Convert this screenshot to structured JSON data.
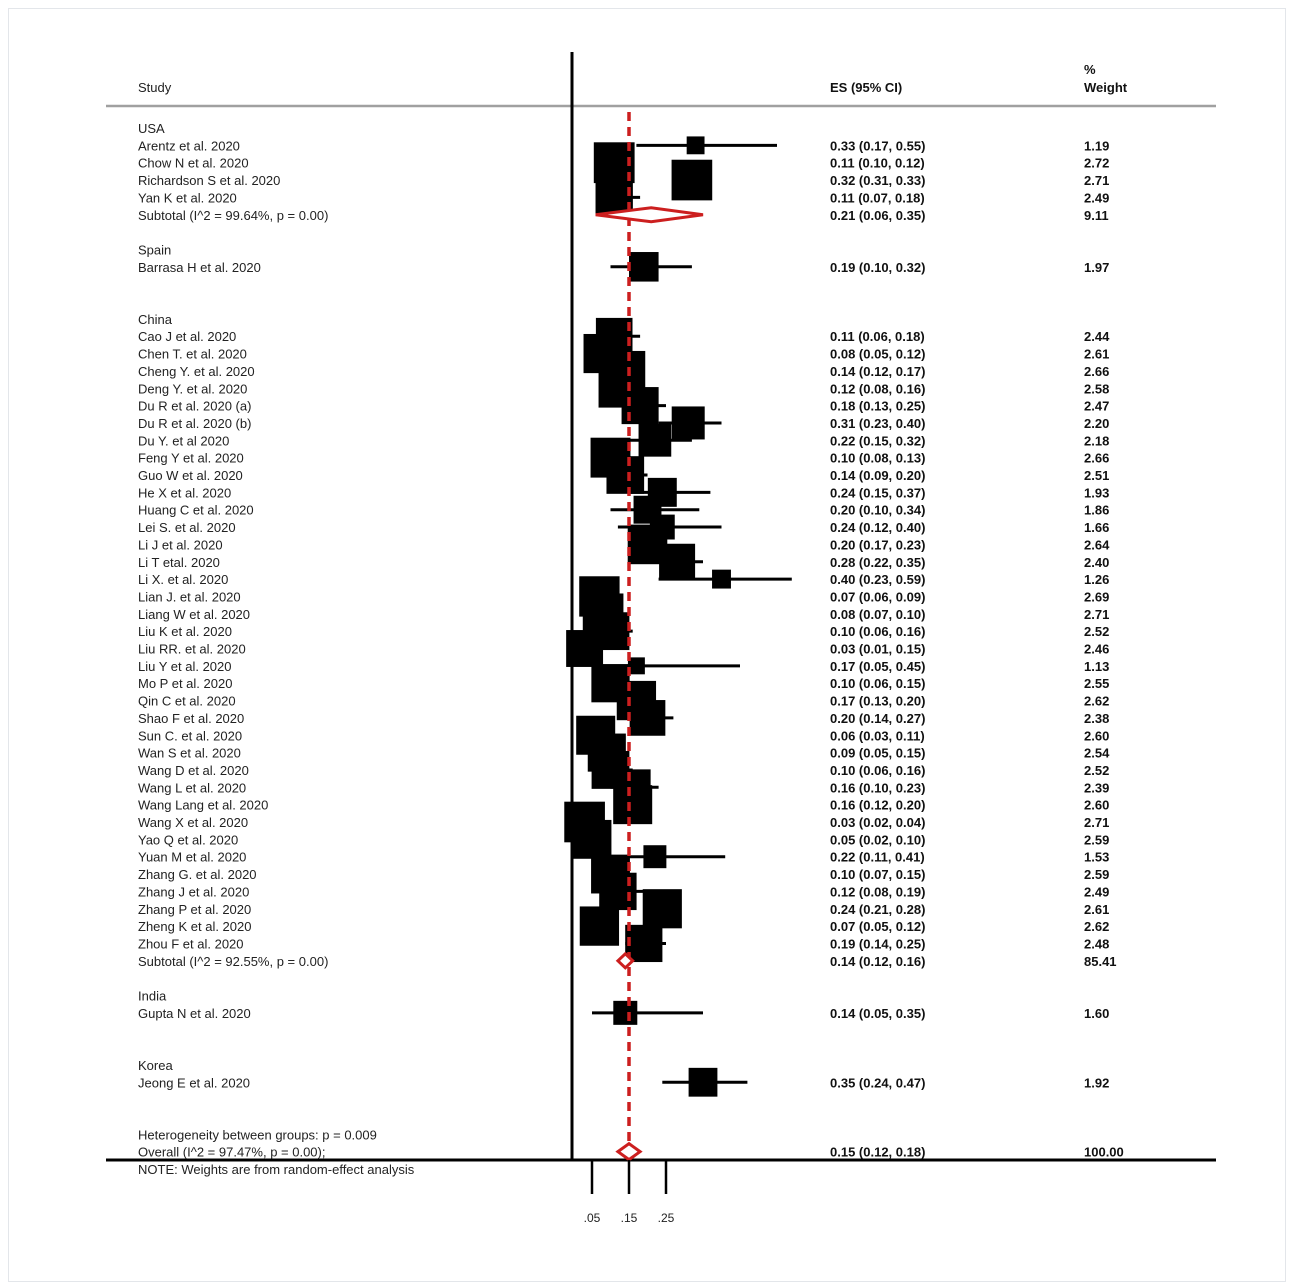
{
  "chart_data": {
    "type": "forest",
    "headers": {
      "study": "Study",
      "es": "ES (95% CI)",
      "weight_line1": "%",
      "weight_line2": "Weight"
    },
    "x_ticks": [
      {
        "value": 0.05,
        "label": ".05"
      },
      {
        "value": 0.15,
        "label": ".15"
      },
      {
        "value": 0.25,
        "label": ".25"
      }
    ],
    "overall_line_value": 0.15,
    "groups": [
      {
        "name": "USA",
        "studies": [
          {
            "study": "Arentz et al. 2020",
            "es": 0.33,
            "lo": 0.17,
            "hi": 0.55,
            "label": "0.33 (0.17, 0.55)",
            "weight": "1.19"
          },
          {
            "study": "Chow N et al. 2020",
            "es": 0.11,
            "lo": 0.1,
            "hi": 0.12,
            "label": "0.11 (0.10, 0.12)",
            "weight": "2.72"
          },
          {
            "study": "Richardson S et al. 2020",
            "es": 0.32,
            "lo": 0.31,
            "hi": 0.33,
            "label": "0.32 (0.31, 0.33)",
            "weight": "2.71"
          },
          {
            "study": "Yan K et al. 2020",
            "es": 0.11,
            "lo": 0.07,
            "hi": 0.18,
            "label": "0.11 (0.07, 0.18)",
            "weight": "2.49"
          }
        ],
        "subtotal": {
          "text": "Subtotal  (I^2 = 99.64%, p = 0.00)",
          "es": 0.21,
          "lo": 0.06,
          "hi": 0.35,
          "label": "0.21 (0.06, 0.35)",
          "weight": "9.11"
        }
      },
      {
        "name": "Spain",
        "studies": [
          {
            "study": "Barrasa H et al. 2020",
            "es": 0.19,
            "lo": 0.1,
            "hi": 0.32,
            "label": "0.19 (0.10, 0.32)",
            "weight": "1.97"
          }
        ]
      },
      {
        "name": "China",
        "studies": [
          {
            "study": "Cao J et al. 2020",
            "es": 0.11,
            "lo": 0.06,
            "hi": 0.18,
            "label": "0.11 (0.06, 0.18)",
            "weight": "2.44"
          },
          {
            "study": "Chen T. et al. 2020",
            "es": 0.08,
            "lo": 0.05,
            "hi": 0.12,
            "label": "0.08 (0.05, 0.12)",
            "weight": "2.61"
          },
          {
            "study": "Cheng Y. et al. 2020",
            "es": 0.14,
            "lo": 0.12,
            "hi": 0.17,
            "label": "0.14 (0.12, 0.17)",
            "weight": "2.66"
          },
          {
            "study": "Deng Y. et al. 2020",
            "es": 0.12,
            "lo": 0.08,
            "hi": 0.16,
            "label": "0.12 (0.08, 0.16)",
            "weight": "2.58"
          },
          {
            "study": "Du R et al. 2020 (a)",
            "es": 0.18,
            "lo": 0.13,
            "hi": 0.25,
            "label": "0.18 (0.13, 0.25)",
            "weight": "2.47"
          },
          {
            "study": "Du R et al. 2020 (b)",
            "es": 0.31,
            "lo": 0.23,
            "hi": 0.4,
            "label": "0.31 (0.23, 0.40)",
            "weight": "2.20"
          },
          {
            "study": "Du Y. et al 2020",
            "es": 0.22,
            "lo": 0.15,
            "hi": 0.32,
            "label": "0.22 (0.15, 0.32)",
            "weight": "2.18"
          },
          {
            "study": "Feng Y et al. 2020",
            "es": 0.1,
            "lo": 0.08,
            "hi": 0.13,
            "label": "0.10 (0.08, 0.13)",
            "weight": "2.66"
          },
          {
            "study": "Guo W et al. 2020",
            "es": 0.14,
            "lo": 0.09,
            "hi": 0.2,
            "label": "0.14 (0.09, 0.20)",
            "weight": "2.51"
          },
          {
            "study": "He X et al. 2020",
            "es": 0.24,
            "lo": 0.15,
            "hi": 0.37,
            "label": "0.24 (0.15, 0.37)",
            "weight": "1.93"
          },
          {
            "study": "Huang C et al. 2020",
            "es": 0.2,
            "lo": 0.1,
            "hi": 0.34,
            "label": "0.20 (0.10, 0.34)",
            "weight": "1.86"
          },
          {
            "study": "Lei S. et al. 2020",
            "es": 0.24,
            "lo": 0.12,
            "hi": 0.4,
            "label": "0.24 (0.12, 0.40)",
            "weight": "1.66"
          },
          {
            "study": "Li J et al. 2020",
            "es": 0.2,
            "lo": 0.17,
            "hi": 0.23,
            "label": "0.20 (0.17, 0.23)",
            "weight": "2.64"
          },
          {
            "study": "Li T etal. 2020",
            "es": 0.28,
            "lo": 0.22,
            "hi": 0.35,
            "label": "0.28 (0.22, 0.35)",
            "weight": "2.40"
          },
          {
            "study": "Li X. et al. 2020",
            "es": 0.4,
            "lo": 0.23,
            "hi": 0.59,
            "label": "0.40 (0.23, 0.59)",
            "weight": "1.26"
          },
          {
            "study": "Lian J. et al. 2020",
            "es": 0.07,
            "lo": 0.06,
            "hi": 0.09,
            "label": "0.07 (0.06, 0.09)",
            "weight": "2.69"
          },
          {
            "study": "Liang W et al. 2020",
            "es": 0.08,
            "lo": 0.07,
            "hi": 0.1,
            "label": "0.08 (0.07, 0.10)",
            "weight": "2.71"
          },
          {
            "study": "Liu K et al. 2020",
            "es": 0.1,
            "lo": 0.06,
            "hi": 0.16,
            "label": "0.10 (0.06, 0.16)",
            "weight": "2.52"
          },
          {
            "study": "Liu RR. et al. 2020",
            "es": 0.03,
            "lo": 0.01,
            "hi": 0.15,
            "label": "0.03 (0.01, 0.15)",
            "weight": "2.46"
          },
          {
            "study": "Liu Y et al. 2020",
            "es": 0.17,
            "lo": 0.05,
            "hi": 0.45,
            "label": "0.17 (0.05, 0.45)",
            "weight": "1.13"
          },
          {
            "study": "Mo P et al. 2020",
            "es": 0.1,
            "lo": 0.06,
            "hi": 0.15,
            "label": "0.10 (0.06, 0.15)",
            "weight": "2.55"
          },
          {
            "study": "Qin C et al. 2020",
            "es": 0.17,
            "lo": 0.13,
            "hi": 0.2,
            "label": "0.17 (0.13, 0.20)",
            "weight": "2.62"
          },
          {
            "study": "Shao F et al. 2020",
            "es": 0.2,
            "lo": 0.14,
            "hi": 0.27,
            "label": "0.20 (0.14, 0.27)",
            "weight": "2.38"
          },
          {
            "study": "Sun C. et al. 2020",
            "es": 0.06,
            "lo": 0.03,
            "hi": 0.11,
            "label": "0.06 (0.03, 0.11)",
            "weight": "2.60"
          },
          {
            "study": "Wan S et al. 2020",
            "es": 0.09,
            "lo": 0.05,
            "hi": 0.15,
            "label": "0.09 (0.05, 0.15)",
            "weight": "2.54"
          },
          {
            "study": "Wang D et al. 2020",
            "es": 0.1,
            "lo": 0.06,
            "hi": 0.16,
            "label": "0.10 (0.06, 0.16)",
            "weight": "2.52"
          },
          {
            "study": "Wang L et al. 2020",
            "es": 0.16,
            "lo": 0.1,
            "hi": 0.23,
            "label": "0.16 (0.10, 0.23)",
            "weight": "2.39"
          },
          {
            "study": "Wang Lang et al. 2020",
            "es": 0.16,
            "lo": 0.12,
            "hi": 0.2,
            "label": "0.16 (0.12, 0.20)",
            "weight": "2.60"
          },
          {
            "study": "Wang X et al. 2020",
            "es": 0.03,
            "lo": 0.02,
            "hi": 0.04,
            "label": "0.03 (0.02, 0.04)",
            "weight": "2.71"
          },
          {
            "study": "Yao Q et al. 2020",
            "es": 0.05,
            "lo": 0.02,
            "hi": 0.1,
            "label": "0.05 (0.02, 0.10)",
            "weight": "2.59"
          },
          {
            "study": "Yuan M et al. 2020",
            "es": 0.22,
            "lo": 0.11,
            "hi": 0.41,
            "label": "0.22 (0.11, 0.41)",
            "weight": "1.53"
          },
          {
            "study": "Zhang G. et al. 2020",
            "es": 0.1,
            "lo": 0.07,
            "hi": 0.15,
            "label": "0.10 (0.07, 0.15)",
            "weight": "2.59"
          },
          {
            "study": "Zhang J et al. 2020",
            "es": 0.12,
            "lo": 0.08,
            "hi": 0.19,
            "label": "0.12 (0.08, 0.19)",
            "weight": "2.49"
          },
          {
            "study": "Zhang P et al. 2020",
            "es": 0.24,
            "lo": 0.21,
            "hi": 0.28,
            "label": "0.24 (0.21, 0.28)",
            "weight": "2.61"
          },
          {
            "study": "Zheng K et al. 2020",
            "es": 0.07,
            "lo": 0.05,
            "hi": 0.12,
            "label": "0.07 (0.05, 0.12)",
            "weight": "2.62"
          },
          {
            "study": "Zhou F et al. 2020",
            "es": 0.19,
            "lo": 0.14,
            "hi": 0.25,
            "label": "0.19 (0.14, 0.25)",
            "weight": "2.48"
          }
        ],
        "subtotal": {
          "text": "Subtotal  (I^2 = 92.55%, p = 0.00)",
          "es": 0.14,
          "lo": 0.12,
          "hi": 0.16,
          "label": "0.14 (0.12, 0.16)",
          "weight": "85.41"
        }
      },
      {
        "name": "India",
        "studies": [
          {
            "study": "Gupta N et al. 2020",
            "es": 0.14,
            "lo": 0.05,
            "hi": 0.35,
            "label": "0.14 (0.05, 0.35)",
            "weight": "1.60"
          }
        ]
      },
      {
        "name": "Korea",
        "studies": [
          {
            "study": "Jeong E et al. 2020",
            "es": 0.35,
            "lo": 0.24,
            "hi": 0.47,
            "label": "0.35 (0.24, 0.47)",
            "weight": "1.92"
          }
        ]
      }
    ],
    "heterogeneity_text": "Heterogeneity between groups: p = 0.009",
    "overall": {
      "text": "Overall  (I^2 = 97.47%, p = 0.00);",
      "es": 0.15,
      "lo": 0.12,
      "hi": 0.18,
      "label": "0.15 (0.12, 0.18)",
      "weight": "100.00"
    },
    "note": "NOTE: Weights are from random-effect analysis",
    "colors": {
      "marker": "#000000",
      "diamond": "#cc1f1f",
      "reference": "#cc1f1f",
      "rule": "#a0a0a0"
    }
  }
}
